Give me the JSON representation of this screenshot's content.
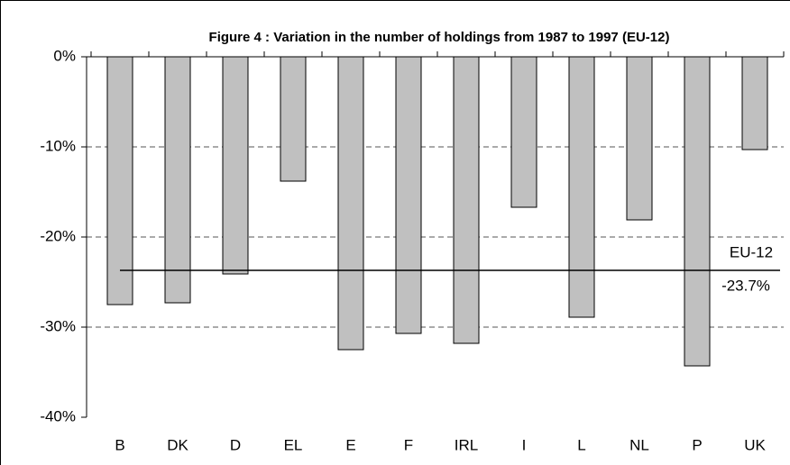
{
  "chart_data": {
    "type": "bar",
    "title": "Figure 4 : Variation in the number of holdings from 1987 to 1997 (EU-12)",
    "categories": [
      "B",
      "DK",
      "D",
      "EL",
      "E",
      "F",
      "IRL",
      "I",
      "L",
      "NL",
      "P",
      "UK"
    ],
    "values": [
      -27.5,
      -27.3,
      -24.1,
      -13.8,
      -32.5,
      -30.7,
      -31.8,
      -16.7,
      -28.9,
      -18.1,
      -34.3,
      -10.3
    ],
    "color": "#c0c0c0",
    "ylim": [
      -40,
      0
    ],
    "yticks": [
      {
        "value": 0,
        "label": "0%"
      },
      {
        "value": -10,
        "label": "-10%"
      },
      {
        "value": -20,
        "label": "-20%"
      },
      {
        "value": -30,
        "label": "-30%"
      },
      {
        "value": -40,
        "label": "-40%"
      }
    ],
    "grid": true,
    "reference": {
      "label": "EU-12",
      "value": -23.7,
      "value_label": "-23.7%"
    }
  }
}
